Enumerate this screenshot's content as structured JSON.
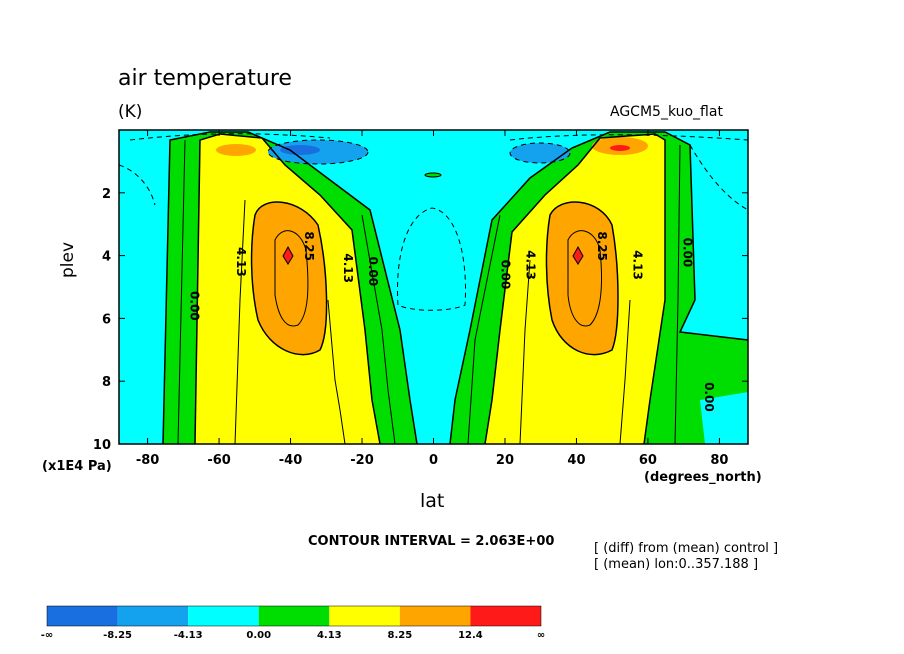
{
  "header": {
    "title": "air temperature",
    "units": "(K)",
    "model": "AGCM5_kuo_flat"
  },
  "axes": {
    "ylabel": "plev",
    "yunit": "(x1E4 Pa)",
    "xlabel": "lat",
    "xunit": "(degrees_north)"
  },
  "footer": {
    "contour_interval": "CONTOUR INTERVAL = 2.063E+00",
    "note1": "[ (diff) from (mean) control ]",
    "note2": "[ (mean) lon:0..357.188 ]"
  },
  "chart_data": {
    "type": "heatmap",
    "x": {
      "name": "lat",
      "ticks": [
        -80,
        -60,
        -40,
        -20,
        0,
        20,
        40,
        60,
        80
      ],
      "range": [
        -88,
        88
      ]
    },
    "y": {
      "name": "plev",
      "ticks": [
        2,
        4,
        6,
        8,
        10
      ],
      "range": [
        0,
        10
      ],
      "inverted": true
    },
    "contour_labels": [
      {
        "text": "8.25",
        "lat": -36,
        "plev": 3.7
      },
      {
        "text": "4.13",
        "lat": -55,
        "plev": 4.2
      },
      {
        "text": "4.13",
        "lat": -25,
        "plev": 4.4
      },
      {
        "text": "0.00",
        "lat": -18,
        "plev": 4.5
      },
      {
        "text": "0.00",
        "lat": -68,
        "plev": 5.6
      },
      {
        "text": "0.00",
        "lat": 19,
        "plev": 4.6
      },
      {
        "text": "4.13",
        "lat": 26,
        "plev": 4.3
      },
      {
        "text": "8.25",
        "lat": 46,
        "plev": 3.7
      },
      {
        "text": "4.13",
        "lat": 56,
        "plev": 4.3
      },
      {
        "text": "0.00",
        "lat": 70,
        "plev": 3.9
      },
      {
        "text": "0.00",
        "lat": 76,
        "plev": 8.5
      }
    ],
    "features": [
      {
        "kind": "max",
        "lat": -40,
        "plev": 4.0,
        "level": ">12.4"
      },
      {
        "kind": "max",
        "lat": 40,
        "plev": 4.0,
        "level": ">12.4"
      },
      {
        "kind": "min",
        "lat": -24,
        "plev": 0.7,
        "level": "<-4.13"
      },
      {
        "kind": "min",
        "lat": 26,
        "plev": 0.7,
        "level": "<-4.13"
      }
    ],
    "colorbar": {
      "labels": [
        "-∞",
        "-8.25",
        "-4.13",
        "0.00",
        "4.13",
        "8.25",
        "12.4",
        "∞"
      ],
      "colors": [
        "#1a6fe0",
        "#14a2ee",
        "#00ffff",
        "#00dd00",
        "#ffff00",
        "#ffa500",
        "#ff1a1a"
      ]
    }
  }
}
